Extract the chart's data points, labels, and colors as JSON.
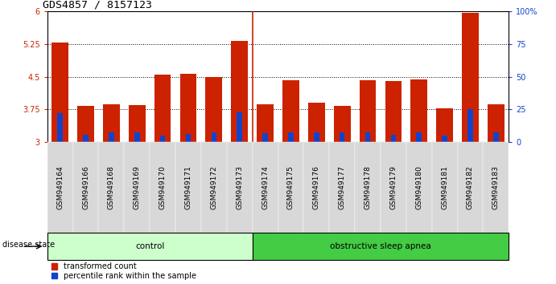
{
  "title": "GDS4857 / 8157123",
  "samples": [
    "GSM949164",
    "GSM949166",
    "GSM949168",
    "GSM949169",
    "GSM949170",
    "GSM949171",
    "GSM949172",
    "GSM949173",
    "GSM949174",
    "GSM949175",
    "GSM949176",
    "GSM949177",
    "GSM949178",
    "GSM949179",
    "GSM949180",
    "GSM949181",
    "GSM949182",
    "GSM949183"
  ],
  "red_values": [
    5.28,
    3.82,
    3.87,
    3.85,
    4.55,
    4.57,
    4.5,
    5.32,
    3.87,
    4.42,
    3.9,
    3.82,
    4.42,
    4.4,
    4.44,
    3.78,
    5.97,
    3.87
  ],
  "blue_values": [
    3.67,
    3.16,
    3.22,
    3.22,
    3.14,
    3.18,
    3.22,
    3.68,
    3.2,
    3.22,
    3.22,
    3.22,
    3.22,
    3.17,
    3.22,
    3.14,
    3.75,
    3.22
  ],
  "baseline": 3.0,
  "ylim_left": [
    3.0,
    6.0
  ],
  "ylim_right": [
    0,
    100
  ],
  "yticks_left": [
    3.0,
    3.75,
    4.5,
    5.25,
    6.0
  ],
  "ytick_labels_left": [
    "3",
    "3.75",
    "4.5",
    "5.25",
    "6"
  ],
  "yticks_right": [
    0,
    25,
    50,
    75,
    100
  ],
  "ytick_labels_right": [
    "0",
    "25",
    "50",
    "75",
    "100%"
  ],
  "dotted_lines": [
    3.75,
    4.5,
    5.25
  ],
  "control_count": 8,
  "control_label": "control",
  "disease_label": "obstructive sleep apnea",
  "disease_state_label": "disease state",
  "legend_red": "transformed count",
  "legend_blue": "percentile rank within the sample",
  "bar_color_red": "#cc2200",
  "bar_color_blue": "#1144cc",
  "control_bg": "#ccffcc",
  "disease_bg": "#44cc44",
  "tick_label_bg": "#d8d8d8",
  "bar_width": 0.65,
  "title_fontsize": 9.5,
  "tick_fontsize": 7,
  "label_fontsize": 7.5,
  "sep_color": "#cc2200"
}
